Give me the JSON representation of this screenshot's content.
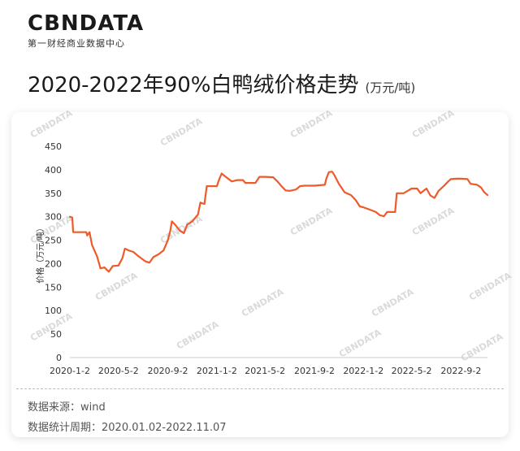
{
  "header": {
    "logo_text": "CBNDATA",
    "logo_subtitle": "第一财经商业数据中心",
    "title": "2020-2022年90%白鸭绒价格走势",
    "unit": "(万元/吨)"
  },
  "watermark_text": "CBNDATA",
  "footer": {
    "source": "数据来源：wind",
    "period": "数据统计周期：2020.01.02-2022.11.07"
  },
  "chart_data": {
    "type": "line",
    "title": "2020-2022年90%白鸭绒价格走势",
    "xlabel": "",
    "ylabel": "价格（万元/吨）",
    "ylim": [
      0,
      450
    ],
    "yticks": [
      0,
      50,
      100,
      150,
      200,
      250,
      300,
      350,
      400,
      450
    ],
    "xlim": [
      "2020-01-02",
      "2022-11-07"
    ],
    "xticks": [
      "2020-1-2",
      "2020-5-2",
      "2020-9-2",
      "2021-1-2",
      "2021-5-2",
      "2021-9-2",
      "2022-1-2",
      "2022-5-2",
      "2022-9-2"
    ],
    "grid": false,
    "legend": "none",
    "line_color": "#ef5a2a",
    "series": [
      {
        "name": "",
        "points": [
          [
            "2020-01-02",
            300
          ],
          [
            "2020-01-08",
            298
          ],
          [
            "2020-01-10",
            267
          ],
          [
            "2020-02-12",
            267
          ],
          [
            "2020-02-14",
            260
          ],
          [
            "2020-02-20",
            267
          ],
          [
            "2020-02-26",
            240
          ],
          [
            "2020-03-10",
            215
          ],
          [
            "2020-03-18",
            190
          ],
          [
            "2020-03-28",
            192
          ],
          [
            "2020-04-08",
            183
          ],
          [
            "2020-04-18",
            195
          ],
          [
            "2020-05-02",
            196
          ],
          [
            "2020-05-12",
            212
          ],
          [
            "2020-05-18",
            232
          ],
          [
            "2020-05-28",
            228
          ],
          [
            "2020-06-08",
            225
          ],
          [
            "2020-06-22",
            215
          ],
          [
            "2020-07-08",
            205
          ],
          [
            "2020-07-18",
            202
          ],
          [
            "2020-07-28",
            214
          ],
          [
            "2020-08-10",
            220
          ],
          [
            "2020-08-22",
            228
          ],
          [
            "2020-09-02",
            250
          ],
          [
            "2020-09-08",
            270
          ],
          [
            "2020-09-12",
            290
          ],
          [
            "2020-09-20",
            283
          ],
          [
            "2020-10-02",
            270
          ],
          [
            "2020-10-12",
            265
          ],
          [
            "2020-10-20",
            283
          ],
          [
            "2020-11-02",
            290
          ],
          [
            "2020-11-16",
            305
          ],
          [
            "2020-11-22",
            330
          ],
          [
            "2020-12-02",
            327
          ],
          [
            "2020-12-08",
            365
          ],
          [
            "2020-12-28",
            365
          ],
          [
            "2021-01-02",
            365
          ],
          [
            "2021-01-08",
            380
          ],
          [
            "2021-01-14",
            392
          ],
          [
            "2021-01-24",
            385
          ],
          [
            "2021-02-08",
            375
          ],
          [
            "2021-02-22",
            378
          ],
          [
            "2021-03-08",
            378
          ],
          [
            "2021-03-14",
            372
          ],
          [
            "2021-04-08",
            372
          ],
          [
            "2021-04-18",
            385
          ],
          [
            "2021-05-02",
            385
          ],
          [
            "2021-05-22",
            384
          ],
          [
            "2021-06-02",
            375
          ],
          [
            "2021-06-12",
            365
          ],
          [
            "2021-06-22",
            356
          ],
          [
            "2021-07-02",
            355
          ],
          [
            "2021-07-18",
            358
          ],
          [
            "2021-07-28",
            365
          ],
          [
            "2021-08-08",
            366
          ],
          [
            "2021-09-02",
            366
          ],
          [
            "2021-09-28",
            368
          ],
          [
            "2021-10-02",
            382
          ],
          [
            "2021-10-08",
            395
          ],
          [
            "2021-10-16",
            396
          ],
          [
            "2021-10-22",
            388
          ],
          [
            "2021-11-02",
            370
          ],
          [
            "2021-11-16",
            352
          ],
          [
            "2021-12-02",
            346
          ],
          [
            "2021-12-14",
            335
          ],
          [
            "2021-12-24",
            322
          ],
          [
            "2022-01-02",
            320
          ],
          [
            "2022-01-18",
            315
          ],
          [
            "2022-02-02",
            310
          ],
          [
            "2022-02-12",
            303
          ],
          [
            "2022-02-22",
            301
          ],
          [
            "2022-03-02",
            310
          ],
          [
            "2022-03-22",
            310
          ],
          [
            "2022-03-26",
            350
          ],
          [
            "2022-04-12",
            350
          ],
          [
            "2022-04-22",
            355
          ],
          [
            "2022-05-02",
            360
          ],
          [
            "2022-05-16",
            360
          ],
          [
            "2022-05-24",
            350
          ],
          [
            "2022-06-08",
            360
          ],
          [
            "2022-06-18",
            345
          ],
          [
            "2022-06-28",
            340
          ],
          [
            "2022-07-08",
            355
          ],
          [
            "2022-07-22",
            366
          ],
          [
            "2022-08-02",
            376
          ],
          [
            "2022-08-08",
            380
          ],
          [
            "2022-08-22",
            381
          ],
          [
            "2022-09-02",
            381
          ],
          [
            "2022-09-18",
            380
          ],
          [
            "2022-09-26",
            370
          ],
          [
            "2022-10-12",
            368
          ],
          [
            "2022-10-22",
            362
          ],
          [
            "2022-10-30",
            352
          ],
          [
            "2022-11-07",
            346
          ]
        ]
      }
    ]
  }
}
